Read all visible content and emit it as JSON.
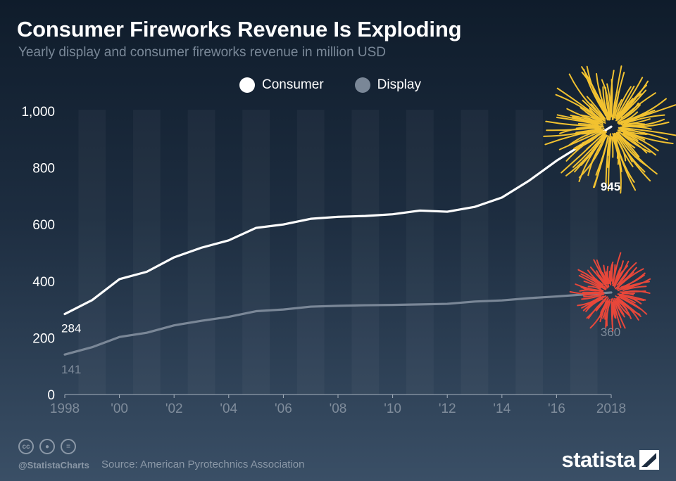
{
  "header": {
    "title": "Consumer Fireworks Revenue Is Exploding",
    "subtitle": "Yearly display and consumer fireworks revenue in million USD"
  },
  "chart_data": {
    "type": "line",
    "title": "Consumer Fireworks Revenue Is Exploding",
    "subtitle": "Yearly display and consumer fireworks revenue in million USD",
    "x": [
      1998,
      1999,
      2000,
      2001,
      2002,
      2003,
      2004,
      2005,
      2006,
      2007,
      2008,
      2009,
      2010,
      2011,
      2012,
      2013,
      2014,
      2015,
      2016,
      2017,
      2018
    ],
    "series": [
      {
        "name": "Consumer",
        "color": "#ffffff",
        "values": [
          284,
          333,
          407,
          433,
          484,
          518,
          544,
          588,
          600,
          620,
          627,
          630,
          636,
          649,
          645,
          662,
          695,
          755,
          825,
          885,
          945
        ]
      },
      {
        "name": "Display",
        "color": "#7a8797",
        "values": [
          141,
          167,
          203,
          218,
          244,
          260,
          274,
          294,
          300,
          310,
          313,
          315,
          316,
          318,
          320,
          328,
          332,
          340,
          346,
          353,
          360
        ]
      }
    ],
    "end_labels": [
      {
        "series": "Consumer",
        "start": "284",
        "end": "945"
      },
      {
        "series": "Display",
        "start": "141",
        "end": "360"
      }
    ],
    "y_ticks": [
      {
        "value": 0,
        "label": "0"
      },
      {
        "value": 200,
        "label": "200"
      },
      {
        "value": 400,
        "label": "400"
      },
      {
        "value": 600,
        "label": "600"
      },
      {
        "value": 800,
        "label": "800"
      },
      {
        "value": 1000,
        "label": "1,000"
      }
    ],
    "x_ticks": [
      {
        "value": 1998,
        "label": "1998"
      },
      {
        "value": 2000,
        "label": "'00"
      },
      {
        "value": 2002,
        "label": "'02"
      },
      {
        "value": 2004,
        "label": "'04"
      },
      {
        "value": 2006,
        "label": "'06"
      },
      {
        "value": 2008,
        "label": "'08"
      },
      {
        "value": 2010,
        "label": "'10"
      },
      {
        "value": 2012,
        "label": "'12"
      },
      {
        "value": 2014,
        "label": "'14"
      },
      {
        "value": 2016,
        "label": "'16"
      },
      {
        "value": 2018,
        "label": "2018"
      }
    ],
    "ylim": [
      0,
      1000
    ],
    "xlim": [
      1998,
      2018
    ],
    "grid": "vertical-bands",
    "legend": "top-center",
    "annotations": [
      {
        "kind": "firework-burst",
        "series": "Consumer",
        "x": 2018,
        "color": "#f2c230"
      },
      {
        "kind": "firework-burst",
        "series": "Display",
        "x": 2018,
        "color": "#e8473a"
      }
    ]
  },
  "legend": [
    {
      "name": "Consumer",
      "color": "#ffffff"
    },
    {
      "name": "Display",
      "color": "#7a8797"
    }
  ],
  "footer": {
    "handle": "@StatistaCharts",
    "source": "Source: American Pyrotechnics Association",
    "brand": "statista",
    "cc_icons": [
      "cc-icon",
      "by-icon",
      "nd-icon"
    ]
  }
}
